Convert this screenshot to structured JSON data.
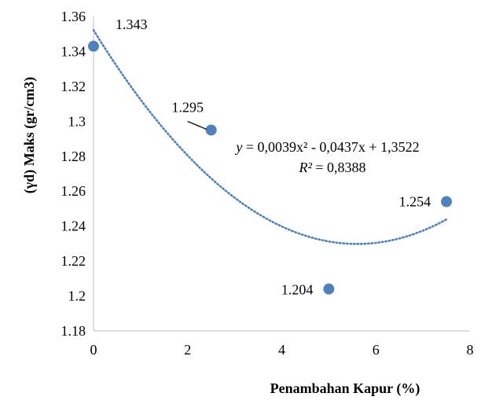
{
  "chart_data": {
    "type": "scatter",
    "xlabel": "Penambahan Kapur (%)",
    "ylabel": "(γd)  Maks (gr/cm3)",
    "xlim": [
      0,
      8
    ],
    "ylim": [
      1.18,
      1.36
    ],
    "x_ticks": [
      "0",
      "2",
      "4",
      "6",
      "8"
    ],
    "y_ticks": [
      "1.18",
      "1.2",
      "1.22",
      "1.24",
      "1.26",
      "1.28",
      "1.3",
      "1.32",
      "1.34",
      "1.36"
    ],
    "grid": false,
    "series": [
      {
        "points": [
          {
            "x": 0,
            "y": 1.343,
            "label": "1.343"
          },
          {
            "x": 2.5,
            "y": 1.295,
            "label": "1.295"
          },
          {
            "x": 5,
            "y": 1.204,
            "label": "1.204"
          },
          {
            "x": 7.5,
            "y": 1.254,
            "label": "1.254"
          }
        ],
        "color": "#4F81BD"
      }
    ],
    "trendline": {
      "type": "polynomial",
      "coefficients": [
        0.0039,
        -0.0437,
        1.3522
      ],
      "x_range": [
        0,
        7.5
      ],
      "style": "dotted",
      "color": "#4F81BD",
      "equation_text": "y = 0,0039x² - 0,0437x + 1,3522",
      "r2_text": "R² = 0,8388"
    }
  }
}
